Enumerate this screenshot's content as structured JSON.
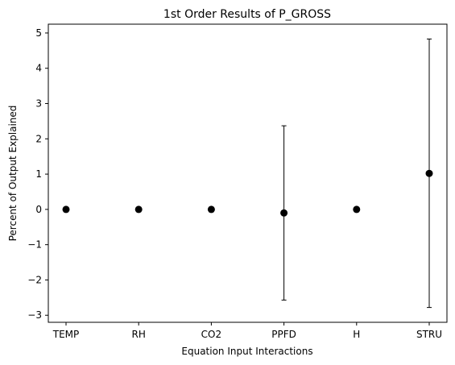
{
  "chart_data": {
    "type": "scatter",
    "title": "1st Order Results of P_GROSS",
    "xlabel": "Equation Input Interactions",
    "ylabel": "Percent of Output Explained",
    "categories": [
      "TEMP",
      "RH",
      "CO2",
      "PPFD",
      "H",
      "STRU"
    ],
    "series": [
      {
        "values": [
          0,
          0,
          0,
          -0.1,
          0,
          1.02
        ],
        "error_low": [
          0,
          0,
          0,
          -2.57,
          0,
          -2.78
        ],
        "error_high": [
          0,
          0,
          0,
          2.37,
          0,
          4.83
        ]
      }
    ],
    "ylim": [
      -3.2,
      5.25
    ],
    "yticks": [
      -3,
      -2,
      -1,
      0,
      1,
      2,
      3,
      4,
      5
    ],
    "ytick_labels": [
      "−3",
      "−2",
      "−1",
      "0",
      "1",
      "2",
      "3",
      "4",
      "5"
    ],
    "grid": false,
    "legend": false,
    "colors": {
      "marker": "#000000",
      "errorbar": "#000000",
      "axes": "#000000"
    }
  }
}
